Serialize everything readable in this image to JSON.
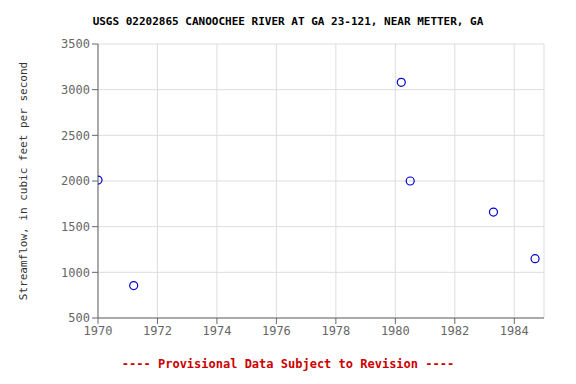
{
  "chart_data": {
    "type": "scatter",
    "title": "USGS 02202865 CANOOCHEE RIVER AT GA 23-121, NEAR METTER, GA",
    "y_label": "Streamflow, in cubic feet per second",
    "x": [
      1970.0,
      1971.2,
      1980.2,
      1980.5,
      1983.3,
      1984.7
    ],
    "values": [
      2010,
      855,
      3080,
      2000,
      1660,
      1150
    ],
    "color": "#0000CC",
    "marker": "circle",
    "xlim": [
      1970,
      1985
    ],
    "ylim": [
      500,
      3500
    ],
    "xticks": [
      1970,
      1972,
      1974,
      1976,
      1978,
      1980,
      1982,
      1984
    ],
    "yticks": [
      500,
      1000,
      1500,
      2000,
      2500,
      3000,
      3500
    ],
    "grid": true,
    "annotations": [
      {
        "text": "---- Provisional Data Subject to Revision ----",
        "color": "#cc0000"
      }
    ]
  }
}
